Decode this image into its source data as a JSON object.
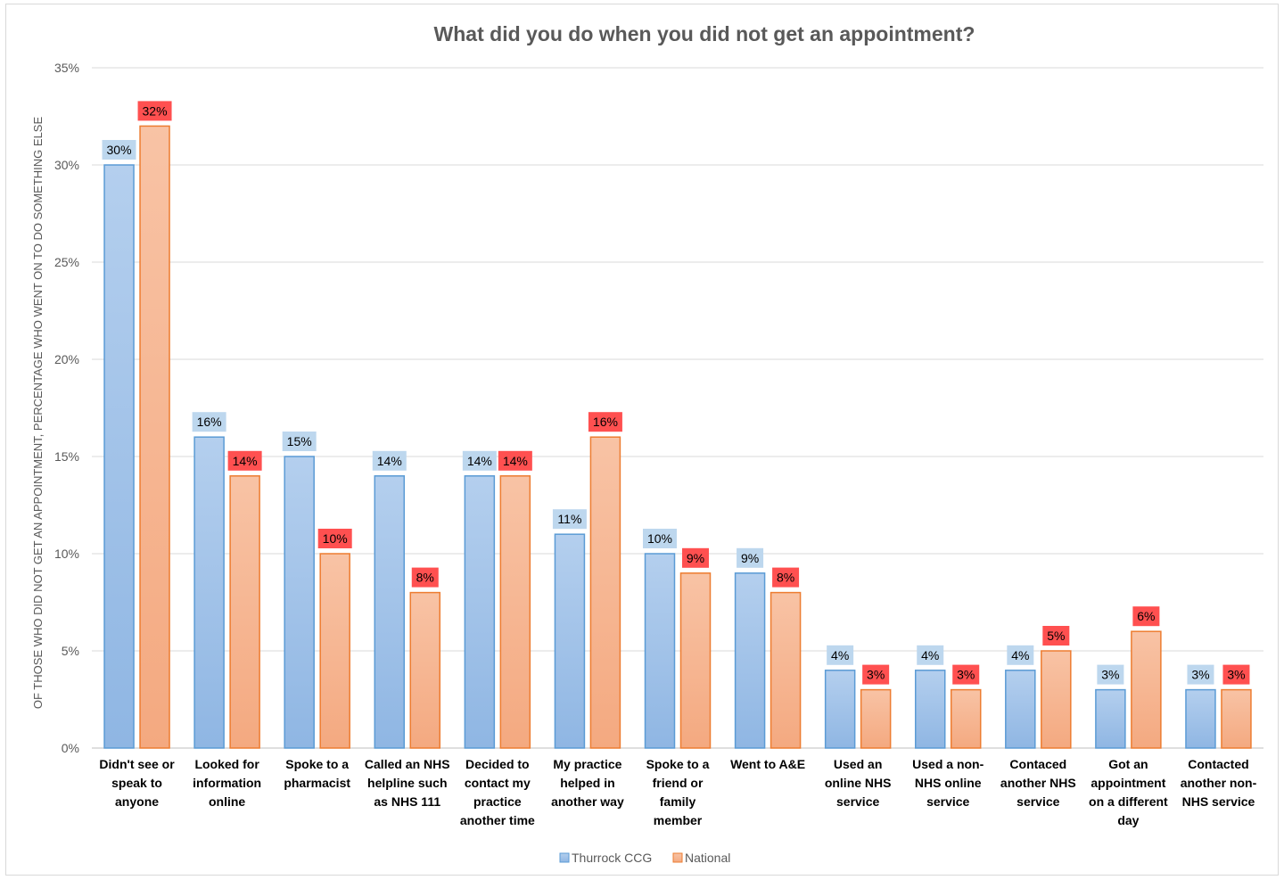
{
  "chart_data": {
    "type": "bar",
    "title": "What did you do when you did not get an appointment?",
    "ylabel": "OF THOSE WHO DID NOT GET AN APPOINTMENT, PERCENTAGE WHO WENT ON TO DO SOMETHING ELSE",
    "xlabel": "",
    "ylim": [
      0,
      35
    ],
    "yticks": [
      "0%",
      "5%",
      "10%",
      "15%",
      "20%",
      "25%",
      "30%",
      "35%"
    ],
    "grid": true,
    "legend_position": "bottom",
    "categories": [
      [
        "Didn't see or",
        "speak to",
        "anyone"
      ],
      [
        "Looked for",
        "information",
        "online"
      ],
      [
        "Spoke to a",
        "pharmacist"
      ],
      [
        "Called an NHS",
        "helpline such",
        "as NHS 111"
      ],
      [
        "Decided to",
        "contact my",
        "practice",
        "another time"
      ],
      [
        "My practice",
        "helped in",
        "another way"
      ],
      [
        "Spoke to a",
        "friend or",
        "family",
        "member"
      ],
      [
        "Went to A&E"
      ],
      [
        "Used an",
        "online NHS",
        "service"
      ],
      [
        "Used a non-",
        "NHS online",
        "service"
      ],
      [
        "Contaced",
        "another NHS",
        "service"
      ],
      [
        "Got an",
        "appointment",
        "on a different",
        "day"
      ],
      [
        "Contacted",
        "another non-",
        "NHS service"
      ]
    ],
    "series": [
      {
        "name": "Thurrock CCG",
        "color": "#9dc3e6",
        "label_bg": "#bdd7ee",
        "values": [
          30,
          16,
          15,
          14,
          14,
          11,
          10,
          9,
          4,
          4,
          4,
          3,
          3
        ],
        "labels": [
          "30%",
          "16%",
          "15%",
          "14%",
          "14%",
          "11%",
          "10%",
          "9%",
          "4%",
          "4%",
          "4%",
          "3%",
          "3%"
        ]
      },
      {
        "name": "National",
        "color": "#f4b183",
        "label_bg": "#ff5050",
        "values": [
          32,
          14,
          10,
          8,
          14,
          16,
          9,
          8,
          3,
          3,
          5,
          6,
          3
        ],
        "labels": [
          "32%",
          "14%",
          "10%",
          "8%",
          "14%",
          "16%",
          "9%",
          "8%",
          "3%",
          "3%",
          "5%",
          "6%",
          "3%"
        ]
      }
    ]
  }
}
